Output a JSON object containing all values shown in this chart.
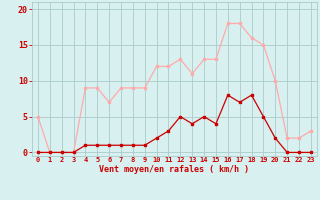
{
  "hours": [
    0,
    1,
    2,
    3,
    4,
    5,
    6,
    7,
    8,
    9,
    10,
    11,
    12,
    13,
    14,
    15,
    16,
    17,
    18,
    19,
    20,
    21,
    22,
    23
  ],
  "wind_avg": [
    0,
    0,
    0,
    0,
    1,
    1,
    1,
    1,
    1,
    1,
    2,
    3,
    5,
    4,
    5,
    4,
    8,
    7,
    8,
    5,
    2,
    0,
    0,
    0
  ],
  "wind_gust": [
    5,
    0,
    0,
    0,
    9,
    9,
    7,
    9,
    9,
    9,
    12,
    12,
    13,
    11,
    13,
    13,
    18,
    18,
    16,
    15,
    10,
    2,
    2,
    3
  ],
  "color_avg": "#cc0000",
  "color_gust": "#ffaaaa",
  "bg_color": "#d8f0f0",
  "grid_color": "#aacccc",
  "xlabel": "Vent moyen/en rafales ( km/h )",
  "yticks": [
    0,
    5,
    10,
    15,
    20
  ],
  "xlim": [
    -0.5,
    23.5
  ],
  "ylim": [
    -0.5,
    21
  ],
  "axis_color": "#cc0000"
}
